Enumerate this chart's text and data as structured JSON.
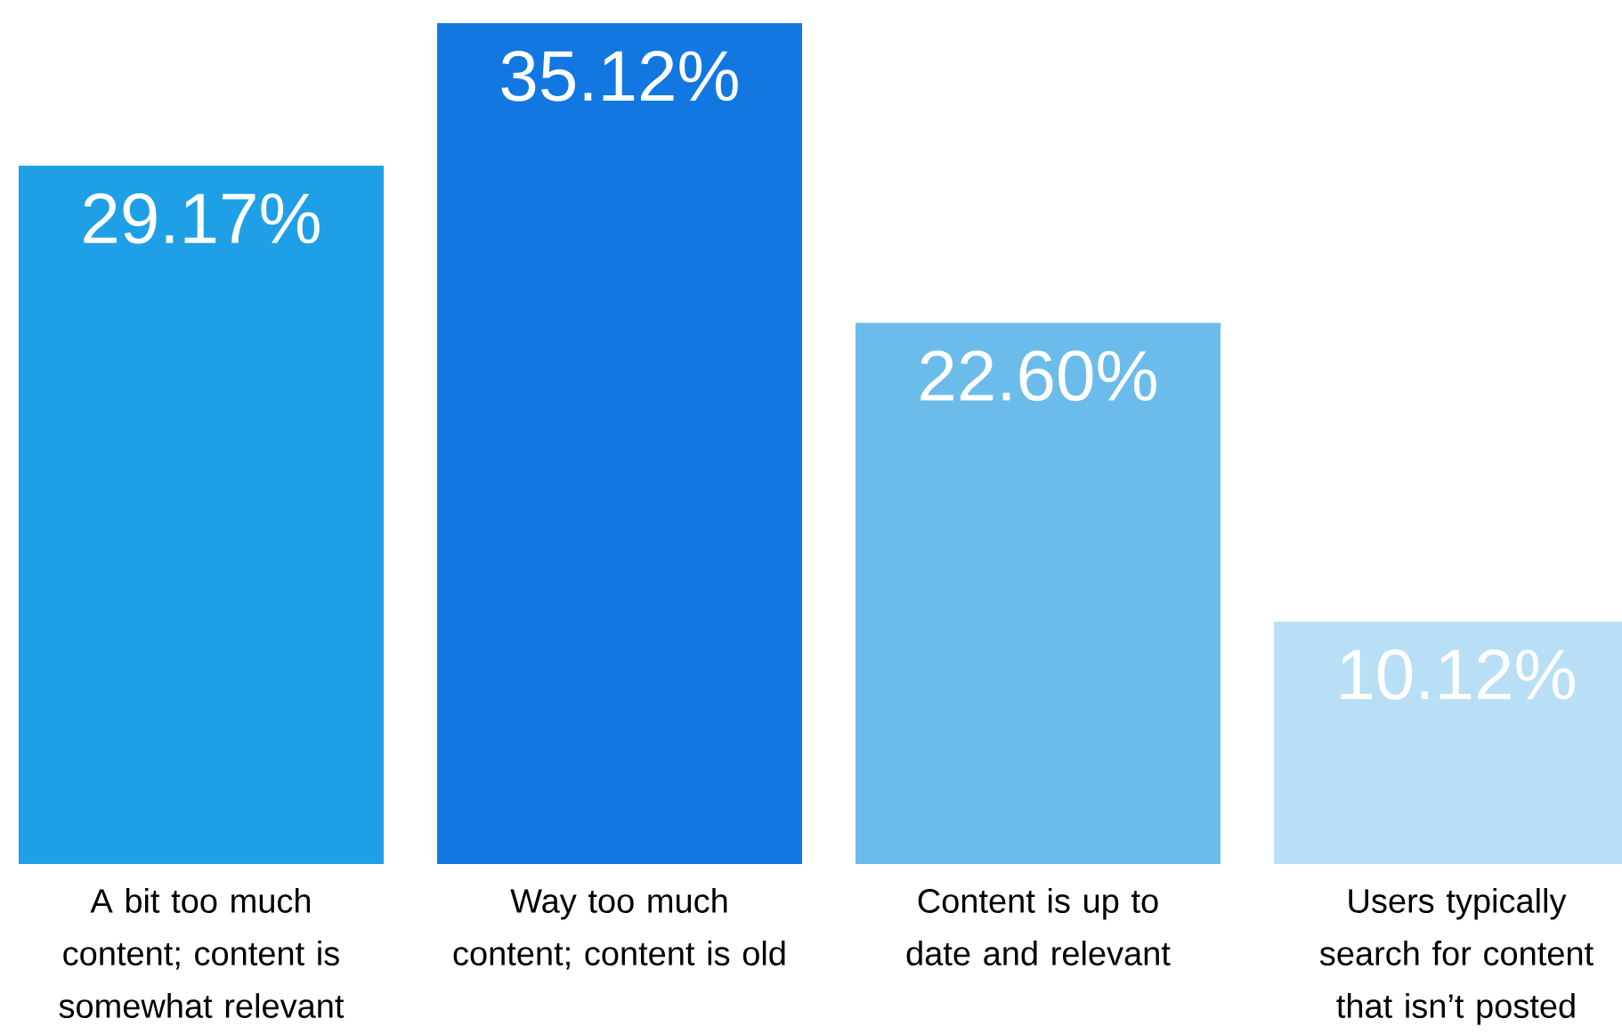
{
  "chart_data": {
    "type": "bar",
    "categories": [
      "A bit too much content; content is somewhat relevant",
      "Way too much content; content is old",
      "Content is up to date and relevant",
      "Users typically search for content that isn’t posted"
    ],
    "values": [
      29.17,
      35.12,
      22.6,
      10.12
    ],
    "colors": [
      "#1fa0e6",
      "#1277e0",
      "#6bbcea",
      "#b8dff5"
    ],
    "value_labels": [
      "29.17%",
      "35.12%",
      "22.60%",
      "10.12%"
    ]
  }
}
